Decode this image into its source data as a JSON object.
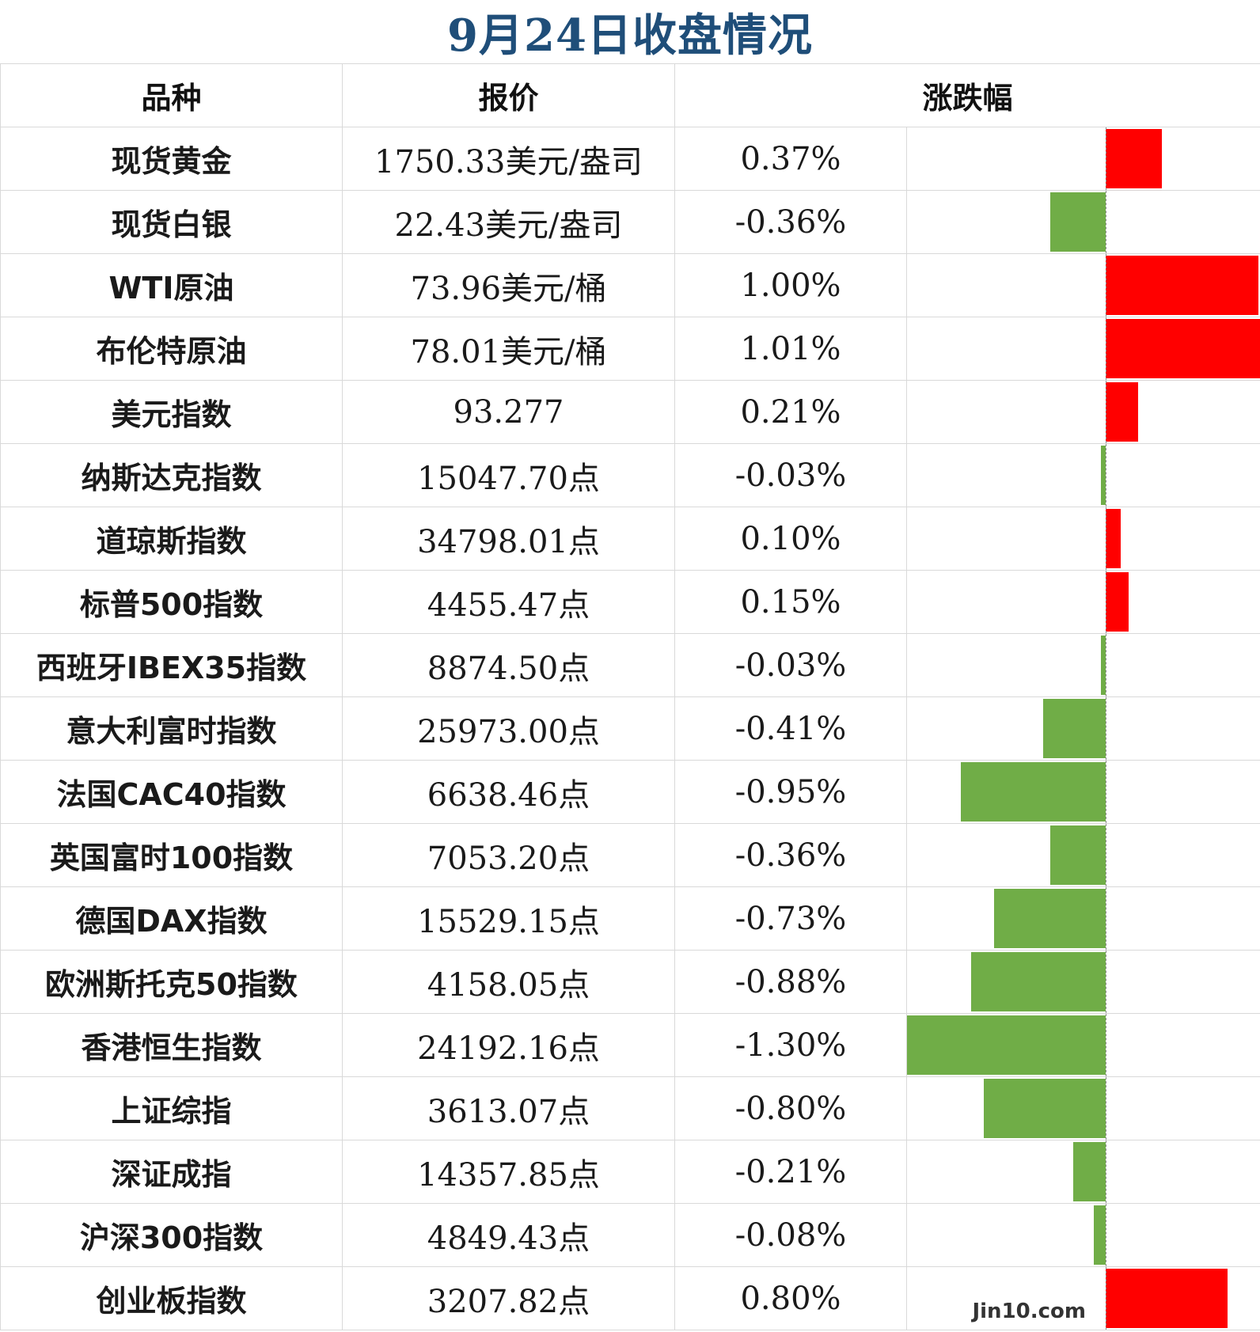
{
  "title": "9月24日收盘情况",
  "headers": {
    "name": "品种",
    "price": "报价",
    "change": "涨跌幅"
  },
  "watermark": "Jin10.com",
  "colors": {
    "up": "#ff0000",
    "down": "#70ad47",
    "title": "#1f4e79"
  },
  "chart_data": {
    "type": "table",
    "columns": [
      "品种",
      "报价",
      "涨跌幅"
    ],
    "bar_range": [
      -1.3,
      1.01
    ],
    "rows": [
      {
        "name": "现货黄金",
        "price": "1750.33美元/盎司",
        "change_text": "0.37%",
        "change": 0.37
      },
      {
        "name": "现货白银",
        "price": "22.43美元/盎司",
        "change_text": "-0.36%",
        "change": -0.36
      },
      {
        "name": "WTI原油",
        "price": "73.96美元/桶",
        "change_text": "1.00%",
        "change": 1.0
      },
      {
        "name": "布伦特原油",
        "price": "78.01美元/桶",
        "change_text": "1.01%",
        "change": 1.01
      },
      {
        "name": "美元指数",
        "price": "93.277",
        "change_text": "0.21%",
        "change": 0.21
      },
      {
        "name": "纳斯达克指数",
        "price": "15047.70点",
        "change_text": "-0.03%",
        "change": -0.03
      },
      {
        "name": "道琼斯指数",
        "price": "34798.01点",
        "change_text": "0.10%",
        "change": 0.1
      },
      {
        "name": "标普500指数",
        "price": "4455.47点",
        "change_text": "0.15%",
        "change": 0.15
      },
      {
        "name": "西班牙IBEX35指数",
        "price": "8874.50点",
        "change_text": "-0.03%",
        "change": -0.03
      },
      {
        "name": "意大利富时指数",
        "price": "25973.00点",
        "change_text": "-0.41%",
        "change": -0.41
      },
      {
        "name": "法国CAC40指数",
        "price": "6638.46点",
        "change_text": "-0.95%",
        "change": -0.95
      },
      {
        "name": "英国富时100指数",
        "price": "7053.20点",
        "change_text": "-0.36%",
        "change": -0.36
      },
      {
        "name": "德国DAX指数",
        "price": "15529.15点",
        "change_text": "-0.73%",
        "change": -0.73
      },
      {
        "name": "欧洲斯托克50指数",
        "price": "4158.05点",
        "change_text": "-0.88%",
        "change": -0.88
      },
      {
        "name": "香港恒生指数",
        "price": "24192.16点",
        "change_text": "-1.30%",
        "change": -1.3
      },
      {
        "name": "上证综指",
        "price": "3613.07点",
        "change_text": "-0.80%",
        "change": -0.8
      },
      {
        "name": "深证成指",
        "price": "14357.85点",
        "change_text": "-0.21%",
        "change": -0.21
      },
      {
        "name": "沪深300指数",
        "price": "4849.43点",
        "change_text": "-0.08%",
        "change": -0.08
      },
      {
        "name": "创业板指数",
        "price": "3207.82点",
        "change_text": "0.80%",
        "change": 0.8
      }
    ]
  }
}
